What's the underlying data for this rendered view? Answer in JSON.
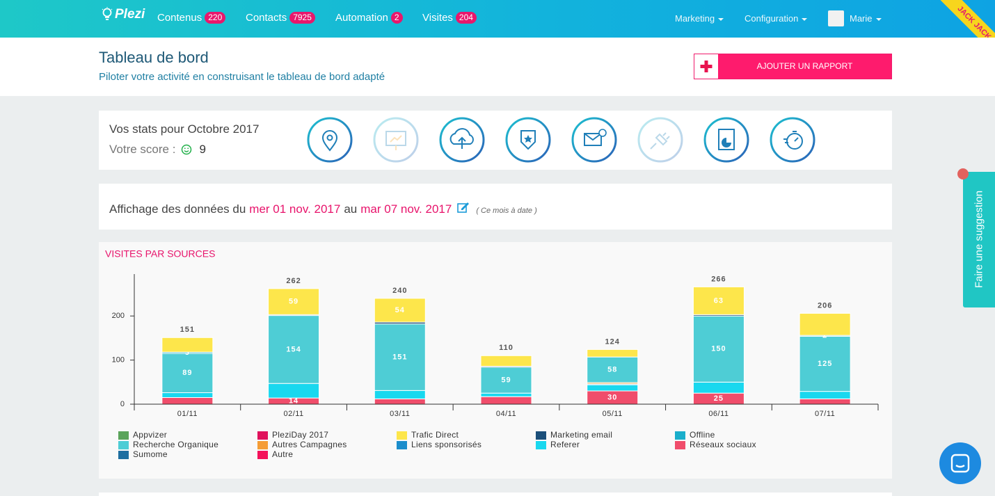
{
  "nav": {
    "logo": "Plezi",
    "items": [
      {
        "label": "Contenus",
        "badge": 220
      },
      {
        "label": "Contacts",
        "badge": 7925
      },
      {
        "label": "Automation",
        "badge": 2
      },
      {
        "label": "Visites",
        "badge": 204
      }
    ],
    "menus": [
      "Marketing",
      "Configuration",
      "Marie"
    ],
    "ribbon": "JACK JACK"
  },
  "header": {
    "title": "Tableau de bord",
    "subtitle": "Piloter votre activité en construisant le tableau de bord adapté",
    "button": "AJOUTER UN RAPPORT"
  },
  "stats": {
    "title": "Vos stats pour Octobre 2017",
    "score_label": "Votre score :",
    "score": 9
  },
  "period": {
    "prefix": "Affichage des données du",
    "start": "mer 01 nov. 2017",
    "middle": "au",
    "end": "mar 07 nov. 2017",
    "note": "( Ce mois à date )"
  },
  "chart_data": {
    "type": "bar",
    "stacked": true,
    "title": "VISITES PAR SOURCES",
    "categories": [
      "01/11",
      "02/11",
      "03/11",
      "04/11",
      "05/11",
      "06/11",
      "07/11"
    ],
    "ylim": [
      0,
      295
    ],
    "yticks": [
      0,
      100,
      200
    ],
    "grid": false,
    "legend": "bottom",
    "totals": [
      151,
      262,
      240,
      110,
      124,
      266,
      206
    ],
    "series": [
      {
        "name": "Appvizer",
        "color": "#5ba45b",
        "values": [
          0,
          0,
          0,
          0,
          0,
          0,
          0
        ]
      },
      {
        "name": "PleziDay 2017",
        "color": "#e0125c",
        "values": [
          0,
          0,
          0,
          0,
          0,
          0,
          0
        ]
      },
      {
        "name": "Trafic Direct",
        "color": "#fde64b",
        "values": [
          33,
          59,
          54,
          24,
          17,
          63,
          50
        ],
        "labeled": [
          false,
          true,
          true,
          false,
          false,
          true,
          false
        ]
      },
      {
        "name": "Marketing email",
        "color": "#1b4f7a",
        "values": [
          0,
          2,
          4,
          2,
          0,
          3,
          0
        ]
      },
      {
        "name": "Offline",
        "color": "#1aaecb",
        "values": [
          3,
          0,
          0,
          0,
          0,
          0,
          2
        ],
        "labeled": [
          true,
          false,
          false,
          false,
          false,
          false,
          true
        ]
      },
      {
        "name": "Recherche Organique",
        "color": "#4ecdd5",
        "values": [
          89,
          154,
          151,
          59,
          58,
          150,
          125
        ],
        "labeled": [
          true,
          true,
          true,
          true,
          true,
          true,
          true
        ]
      },
      {
        "name": "Autres Campagnes",
        "color": "#f59d36",
        "values": [
          0,
          0,
          0,
          0,
          3,
          0,
          0
        ]
      },
      {
        "name": "Liens sponsorisés",
        "color": "#1b8dcc",
        "values": [
          0,
          0,
          0,
          0,
          2,
          0,
          0
        ]
      },
      {
        "name": "Referer",
        "color": "#19d8ef",
        "values": [
          11,
          33,
          19,
          8,
          14,
          25,
          17
        ]
      },
      {
        "name": "Réseaux sociaux",
        "color": "#f04d6b",
        "values": [
          15,
          14,
          12,
          17,
          30,
          25,
          12
        ],
        "labeled": [
          false,
          true,
          false,
          false,
          true,
          true,
          false
        ]
      },
      {
        "name": "Sumome",
        "color": "#1e6ea0",
        "values": [
          0,
          0,
          0,
          0,
          0,
          0,
          0
        ]
      },
      {
        "name": "Autre",
        "color": "#f4125a",
        "values": [
          0,
          0,
          0,
          0,
          0,
          0,
          0
        ]
      }
    ]
  },
  "suggestion": "Faire une suggestion"
}
